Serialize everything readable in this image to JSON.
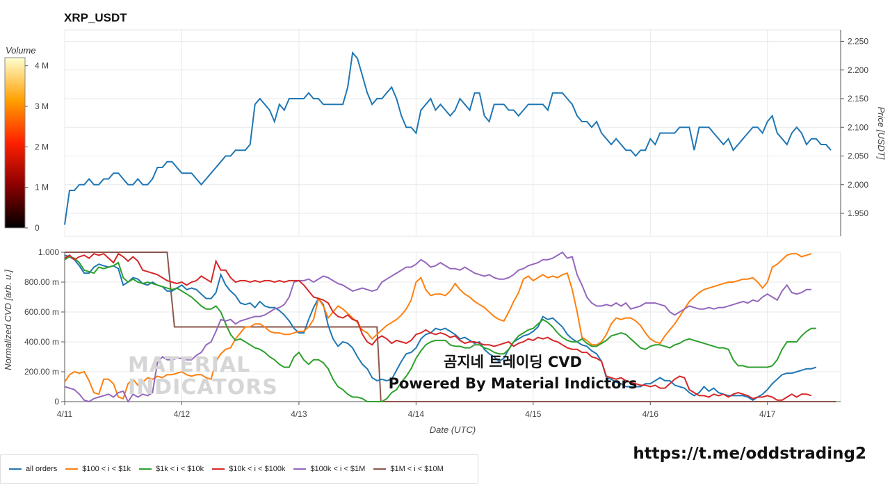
{
  "title": "XRP_USDT",
  "overlay": {
    "line1": "곰지네 트레이딩 CVD",
    "line2": "Powered By Material Indictors",
    "link": "https://t.me/oddstrading2"
  },
  "watermark": {
    "line1": "MATERIAL",
    "line2": "INDICATORS"
  },
  "colors": {
    "all_orders": "#1f77b4",
    "s100": "#ff7f0e",
    "s1k": "#2ca02c",
    "s10k": "#d62728",
    "s100k": "#9467bd",
    "s1m": "#8c564b"
  },
  "chart_data": [
    {
      "type": "line",
      "ylabel": "Price [USDT]",
      "ylim": [
        1.91,
        2.27
      ],
      "yticks": [
        "1.950",
        "2.000",
        "2.050",
        "2.100",
        "2.150",
        "2.200",
        "2.250"
      ],
      "yticks_values": [
        1.95,
        2.0,
        2.05,
        2.1,
        2.15,
        2.2,
        2.25
      ],
      "grid": true,
      "x_start": "4/11",
      "x_step_hours": 1,
      "x_end": "4/17 22:00",
      "series": [
        {
          "values": [
            1.93,
            1.99,
            1.99,
            2.0,
            2.0,
            2.01,
            2.0,
            2.0,
            2.01,
            2.01,
            2.02,
            2.02,
            2.01,
            2.0,
            2.0,
            2.01,
            2.0,
            2.0,
            2.01,
            2.03,
            2.03,
            2.04,
            2.04,
            2.03,
            2.02,
            2.02,
            2.02,
            2.01,
            2.0,
            2.01,
            2.02,
            2.03,
            2.04,
            2.05,
            2.05,
            2.06,
            2.06,
            2.06,
            2.07,
            2.14,
            2.15,
            2.14,
            2.13,
            2.11,
            2.14,
            2.13,
            2.15,
            2.15,
            2.15,
            2.15,
            2.16,
            2.15,
            2.15,
            2.14,
            2.14,
            2.14,
            2.14,
            2.14,
            2.17,
            2.23,
            2.22,
            2.19,
            2.16,
            2.14,
            2.15,
            2.15,
            2.16,
            2.17,
            2.15,
            2.12,
            2.1,
            2.1,
            2.09,
            2.13,
            2.14,
            2.15,
            2.13,
            2.14,
            2.13,
            2.12,
            2.13,
            2.15,
            2.14,
            2.13,
            2.16,
            2.16,
            2.12,
            2.11,
            2.14,
            2.14,
            2.14,
            2.13,
            2.13,
            2.12,
            2.13,
            2.14,
            2.14,
            2.14,
            2.14,
            2.13,
            2.16,
            2.16,
            2.16,
            2.15,
            2.14,
            2.12,
            2.11,
            2.11,
            2.1,
            2.11,
            2.09,
            2.08,
            2.07,
            2.08,
            2.07,
            2.06,
            2.06,
            2.05,
            2.06,
            2.06,
            2.08,
            2.07,
            2.09,
            2.09,
            2.09,
            2.09,
            2.1,
            2.1,
            2.1,
            2.06,
            2.1,
            2.1,
            2.1,
            2.09,
            2.08,
            2.07,
            2.08,
            2.06,
            2.07,
            2.08,
            2.09,
            2.1,
            2.1,
            2.09,
            2.11,
            2.12,
            2.09,
            2.08,
            2.07,
            2.09,
            2.1,
            2.09,
            2.07,
            2.08,
            2.08,
            2.07,
            2.07,
            2.06
          ]
        }
      ],
      "heatmap_legend_title": "Volume",
      "colorbar_ticks": [
        "0",
        "1 M",
        "2 M",
        "3 M",
        "4 M"
      ],
      "colorbar_values": [
        0,
        1000000,
        2000000,
        3000000,
        4000000
      ]
    },
    {
      "type": "line",
      "xlabel": "Date (UTC)",
      "ylabel": "Normalized CVD [arb. u.]",
      "ylim": [
        0,
        1.0
      ],
      "yticks": [
        "0",
        "200.00 m",
        "400.00 m",
        "600.00 m",
        "800.00 m",
        "1.000"
      ],
      "yticks_values": [
        0,
        0.2,
        0.4,
        0.6,
        0.8,
        1.0
      ],
      "xticks": [
        "4/11",
        "4/12",
        "4/13",
        "4/14",
        "4/15",
        "4/16",
        "4/17"
      ],
      "grid": true,
      "legend_placement": "bottom-left",
      "series": [
        {
          "name": "all orders",
          "values": [
            0.98,
            0.97,
            0.95,
            0.91,
            0.86,
            0.86,
            0.9,
            0.92,
            0.91,
            0.9,
            0.91,
            0.89,
            0.78,
            0.8,
            0.83,
            0.82,
            0.79,
            0.78,
            0.8,
            0.78,
            0.77,
            0.74,
            0.74,
            0.76,
            0.78,
            0.75,
            0.76,
            0.75,
            0.72,
            0.69,
            0.69,
            0.73,
            0.85,
            0.78,
            0.74,
            0.71,
            0.66,
            0.65,
            0.66,
            0.63,
            0.67,
            0.64,
            0.63,
            0.63,
            0.61,
            0.58,
            0.54,
            0.49,
            0.46,
            0.46,
            0.55,
            0.63,
            0.69,
            0.65,
            0.51,
            0.42,
            0.37,
            0.4,
            0.39,
            0.36,
            0.3,
            0.25,
            0.22,
            0.16,
            0.14,
            0.15,
            0.14,
            0.15,
            0.21,
            0.27,
            0.32,
            0.33,
            0.36,
            0.42,
            0.45,
            0.46,
            0.49,
            0.48,
            0.49,
            0.47,
            0.45,
            0.42,
            0.43,
            0.41,
            0.39,
            0.4,
            0.35,
            0.32,
            0.3,
            0.27,
            0.29,
            0.35,
            0.4,
            0.42,
            0.44,
            0.45,
            0.47,
            0.5,
            0.57,
            0.55,
            0.56,
            0.53,
            0.5,
            0.45,
            0.42,
            0.4,
            0.38,
            0.37,
            0.34,
            0.32,
            0.27,
            0.16,
            0.15,
            0.13,
            0.12,
            0.1,
            0.1,
            0.1,
            0.1,
            0.12,
            0.12,
            0.14,
            0.16,
            0.14,
            0.14,
            0.11,
            0.1,
            0.09,
            0.06,
            0.04,
            0.06,
            0.1,
            0.07,
            0.09,
            0.06,
            0.05,
            0.04,
            0.04,
            0.04,
            0.04,
            0.03,
            0.01,
            0.03,
            0.05,
            0.08,
            0.12,
            0.15,
            0.18,
            0.19,
            0.19,
            0.2,
            0.21,
            0.22,
            0.22,
            0.23
          ]
        },
        {
          "name": "$100 < i < $1k",
          "values": [
            0.13,
            0.18,
            0.2,
            0.19,
            0.2,
            0.14,
            0.06,
            0.05,
            0.15,
            0.15,
            0.12,
            0.03,
            0.02,
            0.12,
            0.15,
            0.11,
            0.13,
            0.16,
            0.15,
            0.17,
            0.16,
            0.18,
            0.18,
            0.19,
            0.2,
            0.18,
            0.17,
            0.18,
            0.18,
            0.16,
            0.15,
            0.27,
            0.32,
            0.35,
            0.36,
            0.42,
            0.46,
            0.5,
            0.5,
            0.52,
            0.52,
            0.5,
            0.47,
            0.46,
            0.46,
            0.45,
            0.45,
            0.46,
            0.47,
            0.47,
            0.5,
            0.55,
            0.69,
            0.64,
            0.56,
            0.6,
            0.64,
            0.62,
            0.59,
            0.56,
            0.53,
            0.48,
            0.46,
            0.42,
            0.45,
            0.48,
            0.51,
            0.53,
            0.55,
            0.58,
            0.62,
            0.68,
            0.8,
            0.83,
            0.75,
            0.71,
            0.72,
            0.72,
            0.71,
            0.74,
            0.79,
            0.75,
            0.72,
            0.7,
            0.67,
            0.65,
            0.63,
            0.6,
            0.57,
            0.55,
            0.54,
            0.6,
            0.67,
            0.73,
            0.82,
            0.84,
            0.81,
            0.83,
            0.85,
            0.83,
            0.84,
            0.83,
            0.85,
            0.86,
            0.75,
            0.6,
            0.43,
            0.41,
            0.38,
            0.38,
            0.4,
            0.45,
            0.52,
            0.56,
            0.55,
            0.56,
            0.56,
            0.54,
            0.51,
            0.46,
            0.42,
            0.4,
            0.39,
            0.44,
            0.48,
            0.52,
            0.57,
            0.62,
            0.67,
            0.7,
            0.73,
            0.75,
            0.76,
            0.77,
            0.78,
            0.79,
            0.8,
            0.8,
            0.81,
            0.82,
            0.82,
            0.83,
            0.8,
            0.76,
            0.8,
            0.9,
            0.92,
            0.95,
            0.98,
            0.99,
            0.99,
            0.97,
            0.98,
            0.99
          ]
        },
        {
          "name": "$1k < i < $10k",
          "values": [
            0.95,
            0.97,
            0.96,
            0.93,
            0.88,
            0.87,
            0.86,
            0.9,
            0.89,
            0.9,
            0.91,
            0.93,
            0.83,
            0.8,
            0.82,
            0.8,
            0.79,
            0.8,
            0.79,
            0.78,
            0.77,
            0.76,
            0.75,
            0.76,
            0.74,
            0.72,
            0.7,
            0.67,
            0.64,
            0.62,
            0.62,
            0.64,
            0.6,
            0.52,
            0.45,
            0.41,
            0.42,
            0.4,
            0.38,
            0.36,
            0.35,
            0.33,
            0.3,
            0.28,
            0.25,
            0.23,
            0.23,
            0.3,
            0.33,
            0.28,
            0.25,
            0.28,
            0.28,
            0.26,
            0.22,
            0.15,
            0.1,
            0.08,
            0.05,
            0.03,
            0.03,
            0.02,
            0.0,
            0.0,
            0.0,
            0.0,
            0.02,
            0.06,
            0.08,
            0.13,
            0.17,
            0.22,
            0.29,
            0.34,
            0.38,
            0.4,
            0.41,
            0.41,
            0.41,
            0.38,
            0.37,
            0.37,
            0.36,
            0.36,
            0.38,
            0.38,
            0.36,
            0.35,
            0.33,
            0.32,
            0.32,
            0.35,
            0.4,
            0.44,
            0.46,
            0.48,
            0.49,
            0.52,
            0.55,
            0.53,
            0.5,
            0.46,
            0.43,
            0.41,
            0.4,
            0.4,
            0.42,
            0.39,
            0.37,
            0.37,
            0.39,
            0.41,
            0.44,
            0.45,
            0.46,
            0.45,
            0.42,
            0.39,
            0.36,
            0.35,
            0.37,
            0.38,
            0.38,
            0.37,
            0.36,
            0.38,
            0.39,
            0.41,
            0.42,
            0.41,
            0.4,
            0.39,
            0.38,
            0.37,
            0.36,
            0.36,
            0.35,
            0.28,
            0.24,
            0.24,
            0.23,
            0.23,
            0.23,
            0.23,
            0.23,
            0.24,
            0.28,
            0.35,
            0.4,
            0.4,
            0.4,
            0.44,
            0.47,
            0.49,
            0.49
          ]
        },
        {
          "name": "$10k < i < $100k",
          "values": [
            0.96,
            0.98,
            0.95,
            0.97,
            0.98,
            0.96,
            0.99,
            0.98,
            0.99,
            0.96,
            0.93,
            0.99,
            0.97,
            0.94,
            0.97,
            0.94,
            0.88,
            0.87,
            0.86,
            0.85,
            0.83,
            0.81,
            0.8,
            0.79,
            0.8,
            0.78,
            0.8,
            0.81,
            0.84,
            0.82,
            0.8,
            0.94,
            0.88,
            0.88,
            0.83,
            0.8,
            0.81,
            0.81,
            0.8,
            0.81,
            0.8,
            0.81,
            0.81,
            0.8,
            0.81,
            0.8,
            0.81,
            0.81,
            0.81,
            0.78,
            0.74,
            0.7,
            0.69,
            0.68,
            0.66,
            0.6,
            0.57,
            0.56,
            0.58,
            0.55,
            0.54,
            0.45,
            0.4,
            0.38,
            0.42,
            0.44,
            0.42,
            0.39,
            0.41,
            0.4,
            0.39,
            0.41,
            0.45,
            0.46,
            0.48,
            0.46,
            0.45,
            0.46,
            0.45,
            0.43,
            0.44,
            0.41,
            0.39,
            0.4,
            0.4,
            0.39,
            0.38,
            0.38,
            0.37,
            0.38,
            0.39,
            0.4,
            0.37,
            0.39,
            0.4,
            0.42,
            0.41,
            0.43,
            0.42,
            0.43,
            0.41,
            0.4,
            0.38,
            0.36,
            0.35,
            0.35,
            0.33,
            0.33,
            0.3,
            0.29,
            0.27,
            0.17,
            0.16,
            0.15,
            0.16,
            0.14,
            0.13,
            0.12,
            0.11,
            0.11,
            0.1,
            0.11,
            0.09,
            0.09,
            0.12,
            0.15,
            0.17,
            0.16,
            0.08,
            0.06,
            0.04,
            0.04,
            0.03,
            0.05,
            0.04,
            0.05,
            0.03,
            0.05,
            0.06,
            0.05,
            0.04,
            0.02,
            0.03,
            0.03,
            0.04,
            0.03,
            0.01,
            0.01,
            0.03,
            0.05,
            0.03,
            0.05,
            0.05,
            0.04
          ]
        },
        {
          "name": "$100k < i < $1M",
          "values": [
            0.1,
            0.09,
            0.08,
            0.05,
            0.01,
            0.0,
            0.02,
            0.03,
            0.04,
            0.05,
            0.03,
            0.06,
            0.07,
            0.0,
            0.05,
            0.03,
            0.05,
            0.04,
            0.06,
            0.26,
            0.3,
            0.28,
            0.28,
            0.29,
            0.29,
            0.28,
            0.28,
            0.31,
            0.33,
            0.38,
            0.4,
            0.47,
            0.55,
            0.54,
            0.55,
            0.52,
            0.54,
            0.55,
            0.56,
            0.57,
            0.57,
            0.58,
            0.6,
            0.62,
            0.63,
            0.65,
            0.7,
            0.8,
            0.81,
            0.81,
            0.82,
            0.8,
            0.82,
            0.84,
            0.83,
            0.81,
            0.79,
            0.78,
            0.76,
            0.74,
            0.75,
            0.76,
            0.75,
            0.74,
            0.75,
            0.8,
            0.82,
            0.84,
            0.86,
            0.88,
            0.9,
            0.9,
            0.92,
            0.95,
            0.93,
            0.9,
            0.91,
            0.93,
            0.91,
            0.89,
            0.89,
            0.88,
            0.9,
            0.88,
            0.86,
            0.85,
            0.84,
            0.85,
            0.83,
            0.82,
            0.82,
            0.83,
            0.85,
            0.88,
            0.89,
            0.91,
            0.92,
            0.93,
            0.95,
            0.95,
            0.96,
            0.98,
            1.0,
            0.96,
            0.97,
            0.85,
            0.78,
            0.7,
            0.66,
            0.64,
            0.64,
            0.65,
            0.64,
            0.66,
            0.64,
            0.66,
            0.62,
            0.63,
            0.64,
            0.66,
            0.66,
            0.66,
            0.65,
            0.64,
            0.6,
            0.58,
            0.6,
            0.62,
            0.64,
            0.63,
            0.62,
            0.62,
            0.63,
            0.62,
            0.63,
            0.63,
            0.64,
            0.65,
            0.66,
            0.67,
            0.66,
            0.68,
            0.67,
            0.7,
            0.72,
            0.7,
            0.68,
            0.74,
            0.78,
            0.73,
            0.72,
            0.73,
            0.75,
            0.75
          ]
        },
        {
          "name": "$1M < i < $10M",
          "steps": [
            {
              "x": 0,
              "y": 1.0
            },
            {
              "x": 21,
              "y": 1.0
            },
            {
              "x": 22.5,
              "y": 0.5
            },
            {
              "x": 64,
              "y": 0.5
            },
            {
              "x": 64.8,
              "y": 0.0
            },
            {
              "x": 158,
              "y": 0.0
            }
          ]
        }
      ]
    }
  ]
}
